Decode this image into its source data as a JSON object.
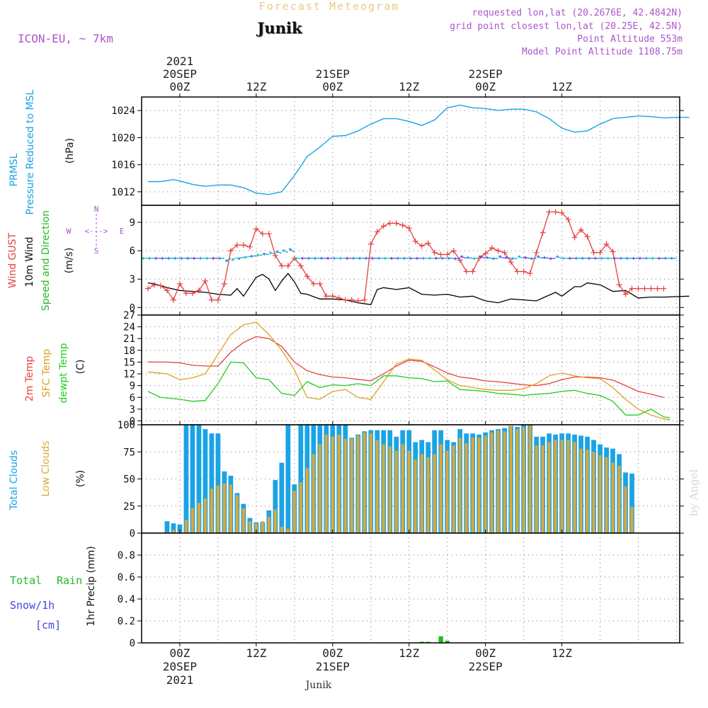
{
  "header": {
    "title": "Forecast Meteogram",
    "location": "Junik",
    "model": "ICON-EU, ~ 7km",
    "requested": "requested lon,lat (20.2676E, 42.4842N)",
    "grid_point": "grid point closest lon,lat (20.25E, 42.5N)",
    "point_altitude": "Point Altitude 553m",
    "model_altitude": "Model Point Altitude 1108.75m",
    "credit": "by Angel",
    "footer_location": "Junik"
  },
  "colors": {
    "pressure": "#1aa3e6",
    "wind_gust": "#e64040",
    "wind_speed": "#000000",
    "wind_dir_label": "#22bb22",
    "temp2m": "#e64040",
    "sfc_temp": "#e0a020",
    "dewpt": "#22cc22",
    "total_clouds": "#1aa3e6",
    "low_clouds": "#d9a83a",
    "rain": "#22bb22",
    "snow": "#4444dd",
    "purple": "#aa55cc",
    "title_orange": "#e8c888"
  },
  "time_axis": {
    "top_ticks": [
      "00Z",
      "12Z",
      "00Z",
      "12Z",
      "00Z",
      "12Z"
    ],
    "top_dates": [
      "20SEP",
      "21SEP",
      "22SEP"
    ],
    "top_year": "2021",
    "bottom_ticks": [
      "00Z",
      "12Z",
      "00Z",
      "12Z",
      "00Z",
      "12Z"
    ],
    "bottom_dates": [
      "20SEP",
      "21SEP",
      "22SEP"
    ],
    "bottom_year": "2021"
  },
  "chart_data": [
    {
      "type": "line",
      "name": "pressure",
      "ylabel_lines": [
        "PRMSL",
        "Pressure Reduced to MSL",
        "(hPa)"
      ],
      "ylim": [
        1010,
        1026
      ],
      "yticks": [
        1012,
        1016,
        1020,
        1024
      ],
      "x_hours": [
        -5,
        -3,
        -1,
        0,
        2,
        4,
        6,
        8,
        10,
        12,
        14,
        16,
        18,
        20,
        22,
        24,
        26,
        28,
        30,
        32,
        34,
        36,
        38,
        40,
        42,
        44,
        46,
        48,
        50,
        52,
        54,
        56,
        58,
        60,
        62,
        64,
        66,
        68,
        70,
        72,
        74,
        76,
        78,
        80
      ],
      "values": [
        1013.5,
        1013.5,
        1013.8,
        1013.6,
        1013.1,
        1012.8,
        1013.0,
        1013.0,
        1012.6,
        1011.8,
        1011.6,
        1012.0,
        1014.4,
        1017.2,
        1018.6,
        1020.2,
        1020.3,
        1021.0,
        1022.0,
        1022.8,
        1022.8,
        1022.4,
        1021.8,
        1022.6,
        1024.4,
        1024.8,
        1024.4,
        1024.3,
        1024.0,
        1024.2,
        1024.2,
        1023.8,
        1022.8,
        1021.4,
        1020.8,
        1021.0,
        1022.0,
        1022.8,
        1023.0,
        1023.2,
        1023.1,
        1022.9,
        1023.0,
        1023.0
      ],
      "pressure_extra_note": ""
    },
    {
      "type": "line",
      "name": "wind",
      "ylabel_lines": [
        "Wind GUST",
        "10m Wind",
        "Speed and Direction",
        "(m/s)"
      ],
      "compass": {
        "n": "N",
        "s": "S",
        "e": "E",
        "w": "W",
        "arrow": "<--->"
      },
      "ylim": [
        -0.8,
        10.8
      ],
      "yticks": [
        0,
        3,
        6,
        9
      ],
      "series": [
        {
          "name": "Wind GUST",
          "x_hours": [
            -5,
            -4,
            -3,
            -2,
            -1,
            0,
            1,
            2,
            3,
            4,
            5,
            6,
            7,
            8,
            9,
            10,
            11,
            12,
            13,
            14,
            15,
            16,
            17,
            18,
            19,
            20,
            21,
            22,
            23,
            24,
            25,
            26,
            27,
            28,
            29,
            30,
            31,
            32,
            33,
            34,
            35,
            36,
            37,
            38,
            39,
            40,
            41,
            42,
            43,
            44,
            45,
            46,
            47,
            48,
            49,
            50,
            51,
            52,
            53,
            54,
            55,
            56,
            57,
            58,
            59,
            60,
            61,
            62,
            63,
            64,
            65,
            66,
            67,
            68,
            69,
            70,
            71,
            72,
            73,
            74,
            75,
            76
          ],
          "values": [
            2.0,
            2.4,
            2.3,
            1.8,
            0.8,
            2.5,
            1.5,
            1.5,
            1.8,
            2.8,
            0.8,
            0.8,
            2.5,
            6.0,
            6.6,
            6.6,
            6.4,
            8.3,
            7.8,
            7.8,
            5.5,
            4.4,
            4.4,
            5.2,
            4.4,
            3.3,
            2.5,
            2.5,
            1.2,
            1.2,
            1.0,
            0.8,
            0.8,
            0.7,
            0.8,
            6.7,
            8.0,
            8.6,
            8.9,
            8.9,
            8.7,
            8.4,
            7.0,
            6.5,
            6.8,
            5.8,
            5.6,
            5.6,
            6.0,
            5.0,
            3.8,
            3.8,
            5.2,
            5.7,
            6.3,
            6.0,
            5.8,
            4.8,
            3.8,
            3.8,
            3.6,
            5.8,
            7.9,
            10.1,
            10.1,
            10.0,
            9.3,
            7.4,
            8.2,
            7.5,
            5.8,
            5.8,
            6.7,
            5.9,
            2.4,
            1.4,
            2.0,
            2.0,
            2.0,
            2.0,
            2.0,
            2.0
          ]
        },
        {
          "name": "10m Wind",
          "x_hours": [
            -5,
            -4,
            -2,
            0,
            2,
            4,
            6,
            8,
            9,
            10,
            11,
            12,
            13,
            14,
            15,
            16,
            17,
            18,
            19,
            20,
            22,
            24,
            26,
            28,
            30,
            31,
            32,
            34,
            36,
            38,
            40,
            42,
            44,
            46,
            48,
            50,
            52,
            54,
            56,
            57,
            58,
            59,
            60,
            62,
            63,
            64,
            66,
            68,
            70,
            71,
            72,
            74,
            76,
            80
          ],
          "values": [
            2.6,
            2.5,
            2.1,
            1.8,
            1.7,
            1.6,
            1.4,
            1.3,
            2.0,
            1.2,
            2.2,
            3.2,
            3.5,
            3.0,
            1.8,
            2.8,
            3.6,
            2.7,
            1.5,
            1.4,
            0.9,
            0.9,
            0.8,
            0.5,
            0.3,
            1.9,
            2.1,
            1.9,
            2.1,
            1.4,
            1.3,
            1.4,
            1.1,
            1.2,
            0.7,
            0.5,
            0.9,
            0.8,
            0.7,
            1.0,
            1.3,
            1.6,
            1.2,
            2.2,
            2.2,
            2.6,
            2.4,
            1.7,
            1.8,
            1.4,
            1.0,
            1.1,
            1.1,
            1.2
          ]
        }
      ],
      "arrow_row_value": 5.2
    },
    {
      "type": "line",
      "name": "temperature",
      "ylabel_lines": [
        "2m Temp",
        "SFC Temp",
        "dewpt Temp",
        "(C)"
      ],
      "ylim": [
        -1,
        27
      ],
      "yticks": [
        0,
        3,
        6,
        9,
        12,
        15,
        18,
        21,
        24,
        27
      ],
      "series": [
        {
          "name": "2m Temp",
          "x_hours": [
            -5,
            -2,
            0,
            2,
            4,
            6,
            8,
            10,
            12,
            14,
            16,
            18,
            20,
            22,
            24,
            26,
            28,
            30,
            32,
            34,
            36,
            38,
            40,
            42,
            44,
            46,
            48,
            50,
            52,
            54,
            56,
            58,
            60,
            62,
            64,
            66,
            68,
            70,
            72,
            74,
            76
          ],
          "values": [
            15.0,
            15.0,
            14.8,
            14.2,
            14.0,
            14.0,
            17.5,
            20.0,
            21.5,
            21.0,
            19.0,
            15.0,
            12.8,
            11.8,
            11.2,
            11.0,
            10.6,
            10.2,
            12.0,
            14.0,
            15.5,
            15.2,
            13.8,
            12.2,
            11.2,
            10.8,
            10.2,
            10.0,
            9.6,
            9.2,
            9.0,
            9.5,
            10.5,
            11.2,
            11.2,
            11.0,
            10.4,
            9.0,
            7.5,
            6.8,
            6.0
          ]
        },
        {
          "name": "SFC Temp",
          "x_hours": [
            -5,
            -2,
            0,
            2,
            4,
            6,
            8,
            10,
            12,
            14,
            16,
            18,
            20,
            22,
            24,
            26,
            28,
            30,
            32,
            34,
            36,
            38,
            40,
            42,
            44,
            46,
            48,
            50,
            52,
            54,
            56,
            58,
            60,
            62,
            64,
            66,
            68,
            70,
            72,
            74,
            76,
            77
          ],
          "values": [
            12.5,
            12.0,
            10.5,
            11.0,
            12.0,
            17.0,
            22.0,
            24.5,
            25.2,
            22.0,
            18.0,
            13.0,
            6.0,
            5.5,
            7.5,
            8.0,
            6.0,
            5.5,
            10.0,
            14.5,
            15.8,
            15.5,
            13.0,
            10.5,
            9.0,
            8.5,
            8.0,
            7.8,
            7.8,
            8.2,
            9.5,
            11.5,
            12.2,
            11.5,
            11.0,
            10.8,
            8.5,
            5.5,
            3.0,
            1.5,
            0.5,
            0.3
          ]
        },
        {
          "name": "dewpt Temp",
          "x_hours": [
            -5,
            -3,
            0,
            2,
            4,
            6,
            8,
            10,
            12,
            14,
            16,
            18,
            20,
            22,
            24,
            26,
            28,
            30,
            32,
            34,
            36,
            38,
            40,
            42,
            44,
            46,
            48,
            50,
            52,
            54,
            56,
            58,
            60,
            62,
            64,
            66,
            68,
            70,
            72,
            74,
            76,
            77
          ],
          "values": [
            7.5,
            6.0,
            5.5,
            5.0,
            5.2,
            9.5,
            15.0,
            14.8,
            11.0,
            10.5,
            7.0,
            6.5,
            10.0,
            8.5,
            9.2,
            9.0,
            9.5,
            9.0,
            11.5,
            11.5,
            11.0,
            10.8,
            10.0,
            10.2,
            8.0,
            7.8,
            7.5,
            7.0,
            6.8,
            6.5,
            6.8,
            7.0,
            7.5,
            7.8,
            7.0,
            6.5,
            5.0,
            1.5,
            1.5,
            3.0,
            1.0,
            0.8
          ]
        }
      ]
    },
    {
      "type": "bar",
      "name": "clouds",
      "ylabel_lines": [
        "Total Clouds",
        "Low Clouds",
        "(%)"
      ],
      "ylim": [
        0,
        100
      ],
      "yticks": [
        0,
        25,
        50,
        75,
        100
      ],
      "x_hours": [
        -5,
        -4,
        -3,
        -2,
        -1,
        0,
        1,
        2,
        3,
        4,
        5,
        6,
        7,
        8,
        9,
        10,
        11,
        12,
        13,
        14,
        15,
        16,
        17,
        18,
        19,
        20,
        21,
        22,
        23,
        24,
        25,
        26,
        27,
        28,
        29,
        30,
        31,
        32,
        33,
        34,
        35,
        36,
        37,
        38,
        39,
        40,
        41,
        42,
        43,
        44,
        45,
        46,
        47,
        48,
        49,
        50,
        51,
        52,
        53,
        54,
        55,
        56,
        57,
        58,
        59,
        60,
        61,
        62,
        63,
        64,
        65,
        66,
        67,
        68,
        69,
        70,
        71,
        72,
        73,
        74,
        75,
        76
      ],
      "series": [
        {
          "name": "Total Clouds",
          "values": [
            0,
            0,
            3,
            11,
            9,
            8,
            100,
            100,
            100,
            96,
            92,
            92,
            57,
            53,
            37,
            27,
            14,
            10,
            10,
            21,
            49,
            65,
            100,
            45,
            100,
            100,
            100,
            100,
            100,
            100,
            100,
            100,
            88,
            91,
            94,
            95,
            95,
            95,
            95,
            89,
            95,
            95,
            84,
            86,
            84,
            95,
            95,
            86,
            84,
            96,
            92,
            92,
            91,
            93,
            95,
            96,
            97,
            99,
            98,
            100,
            100,
            89,
            89,
            92,
            91,
            92,
            92,
            91,
            90,
            89,
            86,
            82,
            79,
            78,
            73,
            56,
            55,
            0
          ]
        },
        {
          "name": "Low Clouds",
          "values": [
            0,
            0,
            0,
            1,
            3,
            2,
            12,
            23,
            28,
            32,
            41,
            44,
            46,
            45,
            35,
            23,
            11,
            9,
            11,
            15,
            22,
            6,
            4,
            39,
            47,
            60,
            73,
            82,
            91,
            89,
            91,
            87,
            87,
            90,
            93,
            92,
            86,
            82,
            80,
            76,
            82,
            76,
            68,
            73,
            70,
            73,
            82,
            76,
            81,
            88,
            83,
            88,
            88,
            90,
            93,
            95,
            94,
            99,
            96,
            98,
            100,
            81,
            81,
            84,
            86,
            86,
            86,
            84,
            78,
            77,
            75,
            72,
            70,
            65,
            62,
            43,
            24,
            0
          ]
        }
      ]
    },
    {
      "type": "bar",
      "name": "precip",
      "ylabel_lines": [
        "1hr Precip (mm)"
      ],
      "left_labels": {
        "total": "Total",
        "rain": "Rain",
        "snow": "Snow/1h",
        "cm": "[cm]"
      },
      "ylim": [
        0,
        1.0
      ],
      "yticks": [
        0,
        0.2,
        0.4,
        0.6,
        0.8
      ],
      "ytick_labels": [
        "0",
        "0.2",
        "0.4",
        "0.6",
        "0.8"
      ],
      "x_hours": [
        38,
        39,
        41,
        42
      ],
      "values": [
        0.01,
        0.01,
        0.06,
        0.02
      ]
    }
  ]
}
